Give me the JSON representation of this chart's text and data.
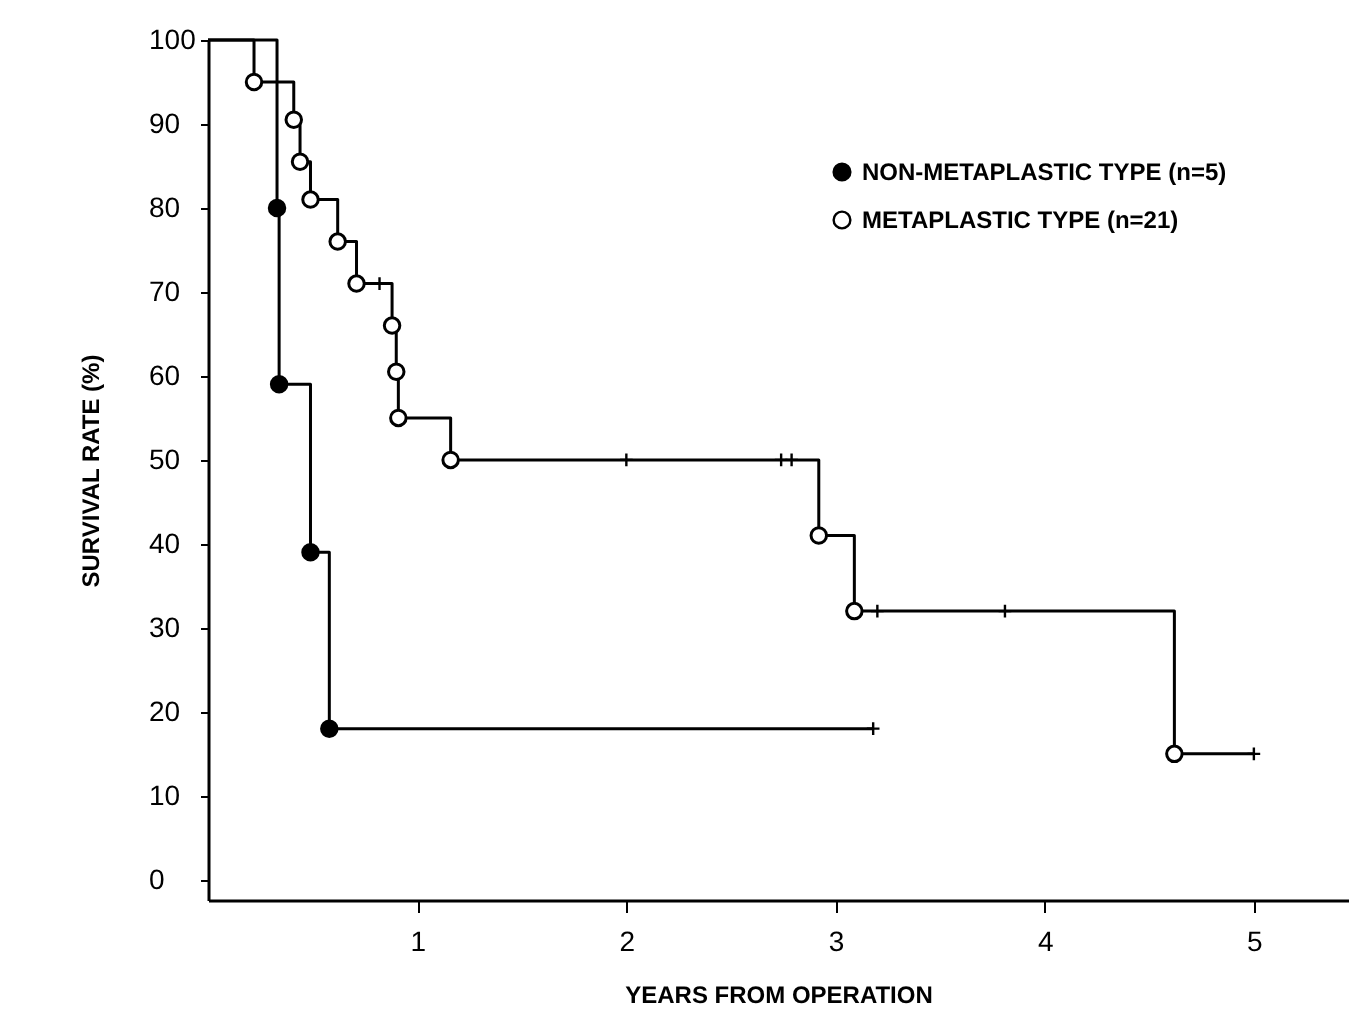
{
  "chart_data": {
    "type": "step",
    "xlabel": "YEARS FROM OPERATION",
    "ylabel": "SURVIVAL RATE (%)",
    "xlim": [
      0,
      5.45
    ],
    "ylim": [
      -2.4,
      100
    ],
    "xticks": [
      {
        "value": 1,
        "label": "1"
      },
      {
        "value": 2,
        "label": "2"
      },
      {
        "value": 3,
        "label": "3"
      },
      {
        "value": 4,
        "label": "4"
      },
      {
        "value": 5,
        "label": "5"
      }
    ],
    "yticks": [
      0,
      10,
      20,
      30,
      40,
      50,
      60,
      70,
      80,
      90,
      100
    ],
    "grid": false,
    "legend": "top right",
    "line_style": "solid",
    "series": [
      {
        "color": "#000000",
        "x": [
          0,
          0.33,
          0.34,
          0.49,
          0.58,
          3.18
        ],
        "values": [
          100,
          80,
          59,
          39,
          18,
          18
        ]
      },
      {
        "color": "#000000",
        "x": [
          0,
          0.22,
          0.41,
          0.44,
          0.49,
          0.62,
          0.71,
          0.88,
          0.9,
          0.91,
          1.16,
          2.92,
          3.09,
          4.62,
          5.0
        ],
        "values": [
          100,
          95,
          90.5,
          85.5,
          81,
          76,
          71,
          66,
          60.5,
          55,
          50,
          41,
          32,
          15,
          15
        ]
      },
      {
        "type": "scatter",
        "name": "NON-METAPLASTIC TYPE (n=5)",
        "color": "#000000",
        "marker": "circle",
        "x": [
          0.33,
          0.34,
          0.49,
          0.58
        ],
        "values": [
          80,
          59,
          39,
          18
        ]
      },
      {
        "type": "scatter",
        "name": "METAPLASTIC TYPE (n=21)",
        "color": "#ffffff",
        "marker": "circle",
        "x": [
          0.22,
          0.41,
          0.44,
          0.49,
          0.62,
          0.71,
          0.88,
          0.9,
          0.91,
          1.16,
          2.92,
          3.09,
          4.62
        ],
        "values": [
          95,
          90.5,
          85.5,
          81,
          76,
          71,
          66,
          60.5,
          55,
          50,
          41,
          32,
          15
        ]
      },
      {
        "type": "scatter",
        "color": "#000000",
        "marker": "cross",
        "x": [
          0.82,
          2.0,
          2.74,
          2.79,
          3.18,
          3.2,
          3.81,
          5.0
        ],
        "values": [
          71,
          50,
          50,
          50,
          18,
          32,
          32,
          15
        ]
      }
    ]
  }
}
